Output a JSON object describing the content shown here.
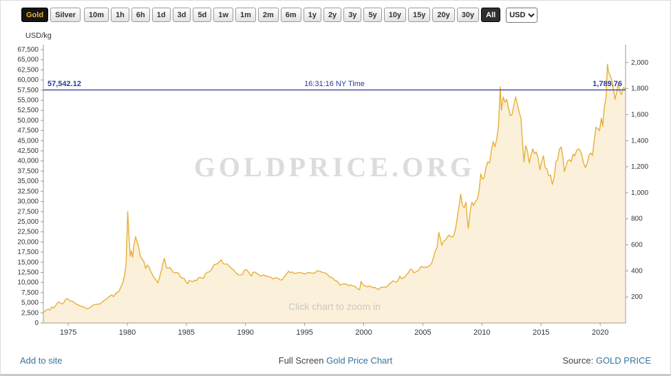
{
  "toolbar": {
    "metal_buttons": [
      {
        "label": "Gold",
        "selected": true
      },
      {
        "label": "Silver",
        "selected": false
      }
    ],
    "range_buttons": [
      {
        "label": "10m",
        "selected": false
      },
      {
        "label": "1h",
        "selected": false
      },
      {
        "label": "6h",
        "selected": false
      },
      {
        "label": "1d",
        "selected": false
      },
      {
        "label": "3d",
        "selected": false
      },
      {
        "label": "5d",
        "selected": false
      },
      {
        "label": "1w",
        "selected": false
      },
      {
        "label": "1m",
        "selected": false
      },
      {
        "label": "2m",
        "selected": false
      },
      {
        "label": "6m",
        "selected": false
      },
      {
        "label": "1y",
        "selected": false
      },
      {
        "label": "2y",
        "selected": false
      },
      {
        "label": "3y",
        "selected": false
      },
      {
        "label": "5y",
        "selected": false
      },
      {
        "label": "10y",
        "selected": false
      },
      {
        "label": "15y",
        "selected": false
      },
      {
        "label": "20y",
        "selected": false
      },
      {
        "label": "30y",
        "selected": false
      },
      {
        "label": "All",
        "selected": true
      }
    ],
    "currency_select": {
      "value": "USD",
      "options": [
        "USD"
      ]
    }
  },
  "chart": {
    "unit_label": "USD/kg",
    "watermark": "GOLDPRICE.ORG",
    "zoom_hint": "Click chart to zoom in",
    "current_line": {
      "left_label": "57,542.12",
      "right_label": "1,789.76",
      "time_label": "16:31:16 NY Time",
      "value_kg": 57542.12,
      "value_oz": 1789.76,
      "color": "#2b3a94"
    },
    "colors": {
      "line": "#e6af38",
      "fill": "rgba(235,188,80,0.22)",
      "axis": "#999999",
      "tick_text": "#333333"
    }
  },
  "chart_data": {
    "type": "area",
    "title": "",
    "xlabel": "",
    "ylabel": "USD/kg",
    "xlim": [
      1972.9,
      2022.15
    ],
    "ylim": [
      0,
      67500
    ],
    "grid": false,
    "legend": false,
    "x_ticks": [
      "1975",
      "1980",
      "1985",
      "1990",
      "1995",
      "2000",
      "2005",
      "2010",
      "2015",
      "2020"
    ],
    "y_ticks_left": [
      "0",
      "2,500",
      "5,000",
      "7,500",
      "10,000",
      "12,500",
      "15,000",
      "17,500",
      "20,000",
      "22,500",
      "25,000",
      "27,500",
      "30,000",
      "32,500",
      "35,000",
      "37,500",
      "40,000",
      "42,500",
      "45,000",
      "47,500",
      "50,000",
      "52,500",
      "55,000",
      "57,500",
      "60,000",
      "62,500",
      "65,000",
      "67,500"
    ],
    "y_ticks_right": [
      "200",
      "400",
      "600",
      "800",
      "1,000",
      "1,200",
      "1,400",
      "1,600",
      "1,800",
      "2,000"
    ],
    "points": [
      [
        1972.9,
        2500
      ],
      [
        1973.1,
        3100
      ],
      [
        1973.3,
        3400
      ],
      [
        1973.45,
        3200
      ],
      [
        1973.6,
        3900
      ],
      [
        1973.75,
        3700
      ],
      [
        1973.9,
        4100
      ],
      [
        1974.05,
        4800
      ],
      [
        1974.2,
        5200
      ],
      [
        1974.35,
        4900
      ],
      [
        1974.5,
        4700
      ],
      [
        1974.65,
        5100
      ],
      [
        1974.8,
        5900
      ],
      [
        1974.95,
        6000
      ],
      [
        1975.1,
        5600
      ],
      [
        1975.25,
        5400
      ],
      [
        1975.4,
        5300
      ],
      [
        1975.55,
        5000
      ],
      [
        1975.7,
        4600
      ],
      [
        1975.85,
        4500
      ],
      [
        1976.0,
        4200
      ],
      [
        1976.15,
        4100
      ],
      [
        1976.3,
        4000
      ],
      [
        1976.45,
        3700
      ],
      [
        1976.6,
        3500
      ],
      [
        1976.75,
        3600
      ],
      [
        1976.9,
        3900
      ],
      [
        1977.05,
        4300
      ],
      [
        1977.2,
        4500
      ],
      [
        1977.35,
        4600
      ],
      [
        1977.5,
        4650
      ],
      [
        1977.65,
        4700
      ],
      [
        1977.8,
        5000
      ],
      [
        1977.95,
        5300
      ],
      [
        1978.1,
        5700
      ],
      [
        1978.25,
        5900
      ],
      [
        1978.4,
        6400
      ],
      [
        1978.55,
        6700
      ],
      [
        1978.7,
        6900
      ],
      [
        1978.85,
        6500
      ],
      [
        1979.0,
        7200
      ],
      [
        1979.15,
        7600
      ],
      [
        1979.3,
        7800
      ],
      [
        1979.45,
        8900
      ],
      [
        1979.6,
        9700
      ],
      [
        1979.75,
        11500
      ],
      [
        1979.9,
        14500
      ],
      [
        1980.04,
        27500
      ],
      [
        1980.15,
        21000
      ],
      [
        1980.25,
        16500
      ],
      [
        1980.35,
        17800
      ],
      [
        1980.45,
        16200
      ],
      [
        1980.55,
        19000
      ],
      [
        1980.7,
        21300
      ],
      [
        1980.8,
        20300
      ],
      [
        1980.95,
        19000
      ],
      [
        1981.1,
        16500
      ],
      [
        1981.25,
        15800
      ],
      [
        1981.4,
        15200
      ],
      [
        1981.55,
        13500
      ],
      [
        1981.7,
        14300
      ],
      [
        1981.85,
        13800
      ],
      [
        1982.0,
        12600
      ],
      [
        1982.15,
        11800
      ],
      [
        1982.3,
        11000
      ],
      [
        1982.45,
        10600
      ],
      [
        1982.6,
        9900
      ],
      [
        1982.75,
        11500
      ],
      [
        1982.9,
        13200
      ],
      [
        1983.05,
        15200
      ],
      [
        1983.15,
        15900
      ],
      [
        1983.3,
        13700
      ],
      [
        1983.45,
        13500
      ],
      [
        1983.6,
        13700
      ],
      [
        1983.75,
        13100
      ],
      [
        1983.9,
        12500
      ],
      [
        1984.05,
        12400
      ],
      [
        1984.2,
        12500
      ],
      [
        1984.35,
        12200
      ],
      [
        1984.5,
        11400
      ],
      [
        1984.65,
        11100
      ],
      [
        1984.8,
        11000
      ],
      [
        1984.95,
        10200
      ],
      [
        1985.1,
        9700
      ],
      [
        1985.25,
        10500
      ],
      [
        1985.4,
        10300
      ],
      [
        1985.55,
        10200
      ],
      [
        1985.7,
        10600
      ],
      [
        1985.85,
        10400
      ],
      [
        1986.0,
        11100
      ],
      [
        1986.15,
        11300
      ],
      [
        1986.3,
        11000
      ],
      [
        1986.45,
        11100
      ],
      [
        1986.6,
        12100
      ],
      [
        1986.75,
        12500
      ],
      [
        1986.9,
        12600
      ],
      [
        1987.05,
        12900
      ],
      [
        1987.2,
        13600
      ],
      [
        1987.35,
        14400
      ],
      [
        1987.5,
        14500
      ],
      [
        1987.65,
        14700
      ],
      [
        1987.8,
        15100
      ],
      [
        1987.95,
        15600
      ],
      [
        1988.1,
        14700
      ],
      [
        1988.25,
        14500
      ],
      [
        1988.4,
        14600
      ],
      [
        1988.55,
        14200
      ],
      [
        1988.7,
        13800
      ],
      [
        1988.85,
        13400
      ],
      [
        1989.0,
        13100
      ],
      [
        1989.15,
        12500
      ],
      [
        1989.3,
        12100
      ],
      [
        1989.45,
        11800
      ],
      [
        1989.6,
        11900
      ],
      [
        1989.75,
        12000
      ],
      [
        1989.9,
        13000
      ],
      [
        1990.05,
        13200
      ],
      [
        1990.2,
        12800
      ],
      [
        1990.35,
        12100
      ],
      [
        1990.5,
        11600
      ],
      [
        1990.65,
        12500
      ],
      [
        1990.8,
        12600
      ],
      [
        1990.95,
        12200
      ],
      [
        1991.1,
        12000
      ],
      [
        1991.25,
        11600
      ],
      [
        1991.4,
        11700
      ],
      [
        1991.55,
        11900
      ],
      [
        1991.7,
        11500
      ],
      [
        1991.85,
        11600
      ],
      [
        1992.0,
        11400
      ],
      [
        1992.15,
        11300
      ],
      [
        1992.3,
        10900
      ],
      [
        1992.45,
        11000
      ],
      [
        1992.6,
        11200
      ],
      [
        1992.75,
        11000
      ],
      [
        1992.9,
        10700
      ],
      [
        1993.05,
        10600
      ],
      [
        1993.2,
        11000
      ],
      [
        1993.35,
        11700
      ],
      [
        1993.5,
        12200
      ],
      [
        1993.65,
        12800
      ],
      [
        1993.8,
        12400
      ],
      [
        1993.95,
        12600
      ],
      [
        1994.1,
        12300
      ],
      [
        1994.25,
        12200
      ],
      [
        1994.4,
        12400
      ],
      [
        1994.55,
        12500
      ],
      [
        1994.7,
        12400
      ],
      [
        1994.85,
        12300
      ],
      [
        1995.0,
        12100
      ],
      [
        1995.15,
        12200
      ],
      [
        1995.3,
        12500
      ],
      [
        1995.45,
        12400
      ],
      [
        1995.6,
        12350
      ],
      [
        1995.75,
        12300
      ],
      [
        1995.9,
        12400
      ],
      [
        1996.05,
        12900
      ],
      [
        1996.2,
        12800
      ],
      [
        1996.35,
        12700
      ],
      [
        1996.5,
        12500
      ],
      [
        1996.65,
        12400
      ],
      [
        1996.8,
        12300
      ],
      [
        1996.95,
        11900
      ],
      [
        1997.1,
        11400
      ],
      [
        1997.25,
        11300
      ],
      [
        1997.4,
        11000
      ],
      [
        1997.55,
        10500
      ],
      [
        1997.7,
        10400
      ],
      [
        1997.85,
        10000
      ],
      [
        1998.0,
        9300
      ],
      [
        1998.15,
        9500
      ],
      [
        1998.3,
        9700
      ],
      [
        1998.45,
        9600
      ],
      [
        1998.6,
        9500
      ],
      [
        1998.75,
        9200
      ],
      [
        1998.9,
        9400
      ],
      [
        1999.05,
        9200
      ],
      [
        1999.2,
        9100
      ],
      [
        1999.35,
        8800
      ],
      [
        1999.5,
        8400
      ],
      [
        1999.65,
        8200
      ],
      [
        1999.78,
        10300
      ],
      [
        1999.9,
        9600
      ],
      [
        2000.05,
        9200
      ],
      [
        2000.2,
        9100
      ],
      [
        2000.35,
        8900
      ],
      [
        2000.5,
        9200
      ],
      [
        2000.65,
        8900
      ],
      [
        2000.8,
        8700
      ],
      [
        2000.95,
        8800
      ],
      [
        2001.1,
        8400
      ],
      [
        2001.25,
        8300
      ],
      [
        2001.4,
        8700
      ],
      [
        2001.55,
        8800
      ],
      [
        2001.7,
        8900
      ],
      [
        2001.85,
        8800
      ],
      [
        2002.0,
        9100
      ],
      [
        2002.15,
        9600
      ],
      [
        2002.3,
        9900
      ],
      [
        2002.45,
        10400
      ],
      [
        2002.6,
        10200
      ],
      [
        2002.75,
        10100
      ],
      [
        2002.9,
        10400
      ],
      [
        2003.05,
        11600
      ],
      [
        2003.2,
        10900
      ],
      [
        2003.35,
        11100
      ],
      [
        2003.5,
        11400
      ],
      [
        2003.65,
        12000
      ],
      [
        2003.8,
        12500
      ],
      [
        2003.95,
        13300
      ],
      [
        2004.1,
        13100
      ],
      [
        2004.25,
        12400
      ],
      [
        2004.4,
        12600
      ],
      [
        2004.55,
        12800
      ],
      [
        2004.7,
        13200
      ],
      [
        2004.85,
        14000
      ],
      [
        2005.0,
        13700
      ],
      [
        2005.15,
        13800
      ],
      [
        2005.3,
        13700
      ],
      [
        2005.45,
        14000
      ],
      [
        2005.6,
        14200
      ],
      [
        2005.75,
        14800
      ],
      [
        2005.9,
        16200
      ],
      [
        2006.05,
        17700
      ],
      [
        2006.2,
        18600
      ],
      [
        2006.35,
        22400
      ],
      [
        2006.5,
        20500
      ],
      [
        2006.6,
        19200
      ],
      [
        2006.75,
        20200
      ],
      [
        2006.9,
        20400
      ],
      [
        2007.05,
        21100
      ],
      [
        2007.2,
        21700
      ],
      [
        2007.35,
        21300
      ],
      [
        2007.5,
        21200
      ],
      [
        2007.65,
        21800
      ],
      [
        2007.8,
        23800
      ],
      [
        2007.95,
        26800
      ],
      [
        2008.1,
        29500
      ],
      [
        2008.2,
        31800
      ],
      [
        2008.35,
        29000
      ],
      [
        2008.5,
        28500
      ],
      [
        2008.65,
        29800
      ],
      [
        2008.75,
        26000
      ],
      [
        2008.85,
        23400
      ],
      [
        2009.0,
        27500
      ],
      [
        2009.15,
        29800
      ],
      [
        2009.3,
        29000
      ],
      [
        2009.45,
        30000
      ],
      [
        2009.6,
        30500
      ],
      [
        2009.75,
        32500
      ],
      [
        2009.9,
        36800
      ],
      [
        2010.05,
        35500
      ],
      [
        2010.2,
        36000
      ],
      [
        2010.35,
        38500
      ],
      [
        2010.5,
        39800
      ],
      [
        2010.65,
        39500
      ],
      [
        2010.8,
        42500
      ],
      [
        2010.95,
        44800
      ],
      [
        2011.1,
        43500
      ],
      [
        2011.25,
        45500
      ],
      [
        2011.4,
        48500
      ],
      [
        2011.55,
        58300
      ],
      [
        2011.65,
        52500
      ],
      [
        2011.8,
        55800
      ],
      [
        2011.95,
        54500
      ],
      [
        2012.1,
        55200
      ],
      [
        2012.25,
        53000
      ],
      [
        2012.4,
        51200
      ],
      [
        2012.55,
        51500
      ],
      [
        2012.7,
        53800
      ],
      [
        2012.85,
        55800
      ],
      [
        2013.0,
        54000
      ],
      [
        2013.15,
        52000
      ],
      [
        2013.3,
        50600
      ],
      [
        2013.42,
        45200
      ],
      [
        2013.55,
        39800
      ],
      [
        2013.7,
        43800
      ],
      [
        2013.85,
        42500
      ],
      [
        2014.0,
        39500
      ],
      [
        2014.15,
        41500
      ],
      [
        2014.3,
        43000
      ],
      [
        2014.45,
        41800
      ],
      [
        2014.6,
        42200
      ],
      [
        2014.75,
        40800
      ],
      [
        2014.9,
        37800
      ],
      [
        2015.05,
        39800
      ],
      [
        2015.2,
        41300
      ],
      [
        2015.35,
        38300
      ],
      [
        2015.5,
        38000
      ],
      [
        2015.65,
        36300
      ],
      [
        2015.8,
        36500
      ],
      [
        2015.95,
        34200
      ],
      [
        2016.1,
        35800
      ],
      [
        2016.25,
        39800
      ],
      [
        2016.4,
        40300
      ],
      [
        2016.55,
        42800
      ],
      [
        2016.7,
        43500
      ],
      [
        2016.85,
        40800
      ],
      [
        2016.97,
        37400
      ],
      [
        2017.1,
        38700
      ],
      [
        2017.25,
        40000
      ],
      [
        2017.4,
        40300
      ],
      [
        2017.55,
        39800
      ],
      [
        2017.7,
        41700
      ],
      [
        2017.85,
        41200
      ],
      [
        2018.0,
        42500
      ],
      [
        2018.15,
        43000
      ],
      [
        2018.3,
        42600
      ],
      [
        2018.45,
        41500
      ],
      [
        2018.6,
        39500
      ],
      [
        2018.75,
        38400
      ],
      [
        2018.9,
        39400
      ],
      [
        2019.05,
        41400
      ],
      [
        2019.2,
        42000
      ],
      [
        2019.35,
        41300
      ],
      [
        2019.5,
        45200
      ],
      [
        2019.65,
        48300
      ],
      [
        2019.8,
        48000
      ],
      [
        2019.95,
        47500
      ],
      [
        2020.1,
        50600
      ],
      [
        2020.22,
        48600
      ],
      [
        2020.35,
        53200
      ],
      [
        2020.5,
        55800
      ],
      [
        2020.62,
        63900
      ],
      [
        2020.72,
        62000
      ],
      [
        2020.85,
        61000
      ],
      [
        2020.95,
        60300
      ],
      [
        2021.05,
        59000
      ],
      [
        2021.15,
        57300
      ],
      [
        2021.25,
        55200
      ],
      [
        2021.4,
        57000
      ],
      [
        2021.5,
        58800
      ],
      [
        2021.6,
        58200
      ],
      [
        2021.7,
        56800
      ],
      [
        2021.8,
        56400
      ],
      [
        2021.9,
        57600
      ],
      [
        2022.0,
        58200
      ],
      [
        2022.1,
        57542.12
      ]
    ]
  },
  "footer": {
    "add_to_site": "Add to site",
    "full_screen_prefix": "Full Screen",
    "chart_link": "Gold Price Chart",
    "source_prefix": "Source:",
    "source_link": "GOLD PRICE"
  }
}
